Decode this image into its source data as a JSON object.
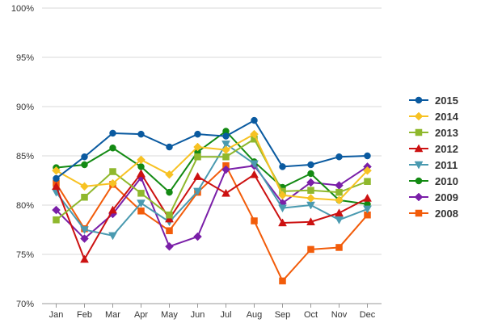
{
  "chart_data": {
    "type": "line",
    "categories": [
      "Jan",
      "Feb",
      "Mar",
      "Apr",
      "May",
      "Jun",
      "Jul",
      "Aug",
      "Sep",
      "Oct",
      "Nov",
      "Dec"
    ],
    "ylim": [
      70,
      100
    ],
    "y_ticks": [
      70,
      75,
      80,
      85,
      90,
      95,
      100
    ],
    "y_tick_labels": [
      "70%",
      "75%",
      "80%",
      "85%",
      "90%",
      "95%",
      "100%"
    ],
    "grid": "horizontal",
    "legend_position": "right",
    "series": [
      {
        "name": "2015",
        "color": "#0a5aa0",
        "marker": "circle",
        "values": [
          82.7,
          84.9,
          87.3,
          87.2,
          85.9,
          87.2,
          87.0,
          88.6,
          83.9,
          84.1,
          84.9,
          85.0
        ]
      },
      {
        "name": "2014",
        "color": "#f7c223",
        "marker": "diamond",
        "values": [
          83.5,
          81.9,
          82.2,
          84.6,
          83.1,
          85.9,
          85.6,
          87.2,
          81.0,
          80.7,
          80.5,
          83.5
        ]
      },
      {
        "name": "2013",
        "color": "#8fb82d",
        "marker": "square",
        "values": [
          78.5,
          80.8,
          83.4,
          81.2,
          79.0,
          84.9,
          84.9,
          86.7,
          81.4,
          81.5,
          81.3,
          82.4
        ]
      },
      {
        "name": "2012",
        "color": "#cc1111",
        "marker": "triangle-up",
        "values": [
          81.9,
          74.5,
          79.5,
          83.2,
          78.6,
          82.9,
          81.2,
          83.1,
          78.2,
          78.3,
          79.2,
          80.7
        ]
      },
      {
        "name": "2011",
        "color": "#4a9ab0",
        "marker": "triangle-down",
        "values": [
          81.3,
          77.5,
          76.9,
          80.2,
          78.3,
          81.4,
          86.2,
          84.2,
          79.7,
          80.0,
          78.5,
          79.6
        ]
      },
      {
        "name": "2010",
        "color": "#138a13",
        "marker": "circle",
        "values": [
          83.8,
          84.1,
          85.8,
          83.9,
          81.3,
          85.4,
          87.5,
          84.4,
          81.8,
          83.2,
          80.5,
          80.1
        ]
      },
      {
        "name": "2009",
        "color": "#7a1fa8",
        "marker": "diamond",
        "values": [
          79.5,
          76.6,
          79.1,
          82.8,
          75.8,
          76.8,
          83.6,
          84.0,
          80.2,
          82.3,
          82.0,
          83.9
        ]
      },
      {
        "name": "2008",
        "color": "#f25c0a",
        "marker": "square",
        "values": [
          82.2,
          77.6,
          82.1,
          79.4,
          77.4,
          81.3,
          84.0,
          78.4,
          72.3,
          75.5,
          75.7,
          79.0
        ]
      }
    ]
  }
}
